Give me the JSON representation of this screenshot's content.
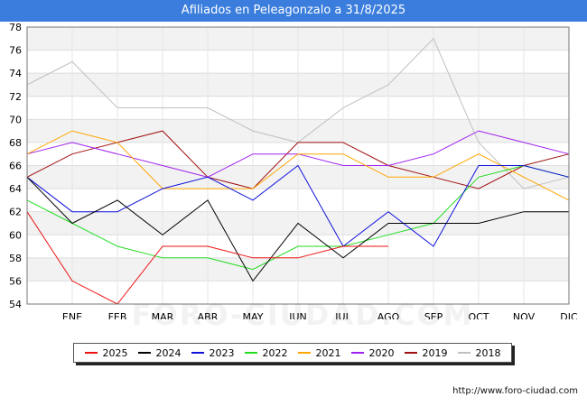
{
  "header": {
    "title": "Afiliados en Peleagonzalo a 31/8/2025"
  },
  "footer": {
    "source": "http://www.foro-ciudad.com",
    "watermark": "FORO-CIUDAD.COM"
  },
  "chart_data": {
    "type": "line",
    "title": "Afiliados en Peleagonzalo a 31/8/2025",
    "xlabel": "",
    "ylabel": "",
    "categories": [
      "",
      "ENE",
      "FEB",
      "MAR",
      "ABR",
      "MAY",
      "JUN",
      "JUL",
      "AGO",
      "SEP",
      "OCT",
      "NOV",
      "DIC"
    ],
    "ylim": [
      54,
      78
    ],
    "yticks": [
      54,
      56,
      58,
      60,
      62,
      64,
      66,
      68,
      70,
      72,
      74,
      76,
      78
    ],
    "grid": true,
    "legend_position": "bottom",
    "series": [
      {
        "name": "2025",
        "color": "#ee1111",
        "values": [
          62,
          56,
          54,
          59,
          59,
          58,
          58,
          59,
          59,
          null,
          null,
          null,
          null
        ]
      },
      {
        "name": "2024",
        "color": "#000000",
        "values": [
          65,
          61,
          63,
          60,
          63,
          56,
          61,
          58,
          61,
          61,
          61,
          62,
          62
        ]
      },
      {
        "name": "2023",
        "color": "#1111dd",
        "values": [
          65,
          62,
          62,
          64,
          65,
          63,
          66,
          59,
          62,
          59,
          66,
          66,
          65
        ]
      },
      {
        "name": "2022",
        "color": "#22dd22",
        "values": [
          63,
          61,
          59,
          58,
          58,
          57,
          59,
          59,
          60,
          61,
          65,
          66,
          65
        ]
      },
      {
        "name": "2021",
        "color": "#ffa500",
        "values": [
          67,
          69,
          68,
          64,
          64,
          64,
          67,
          67,
          65,
          65,
          67,
          65,
          63
        ]
      },
      {
        "name": "2020",
        "color": "#a020f0",
        "values": [
          67,
          68,
          67,
          66,
          65,
          67,
          67,
          66,
          66,
          67,
          69,
          68,
          67
        ]
      },
      {
        "name": "2019",
        "color": "#a01010",
        "values": [
          65,
          67,
          68,
          69,
          65,
          64,
          68,
          68,
          66,
          65,
          64,
          66,
          67
        ]
      },
      {
        "name": "2018",
        "color": "#c0c0c0",
        "values": [
          73,
          75,
          71,
          71,
          71,
          69,
          68,
          71,
          73,
          77,
          68,
          64,
          65
        ]
      }
    ]
  }
}
